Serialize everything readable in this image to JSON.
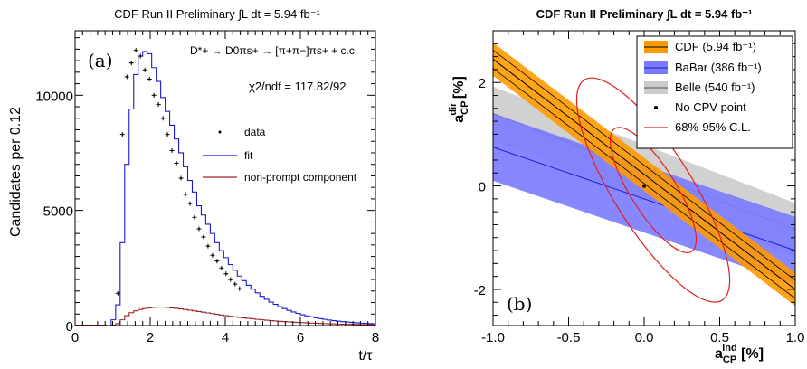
{
  "chart_data": [
    {
      "type": "histogram",
      "title": "CDF Run II Preliminary ∫L dt = 5.94 fb⁻¹",
      "panel_label": "(a)",
      "xlabel": "t/τ",
      "ylabel": "Candidates per 0.12",
      "xlim": [
        0,
        8
      ],
      "ylim": [
        0,
        12800
      ],
      "xticks": [
        "0",
        "2",
        "4",
        "6",
        "8"
      ],
      "yticks": [
        "0",
        "5000",
        "10000"
      ],
      "decay": "D*+ → D0πs+ → [π+π−]πs+ + c.c.",
      "chi2": "χ2/ndf = 117.82/92",
      "legend": [
        {
          "label": "data",
          "color": "#000000"
        },
        {
          "label": "fit",
          "color": "#1a1ad6"
        },
        {
          "label": "non-prompt component",
          "color": "#a02020"
        }
      ],
      "series": [
        {
          "name": "fit",
          "color": "#1a1ad6",
          "x": [
            0.84,
            0.96,
            1.08,
            1.2,
            1.32,
            1.44,
            1.56,
            1.68,
            1.8,
            1.92,
            2.04,
            2.16,
            2.28,
            2.4,
            2.52,
            2.64,
            2.76,
            2.88,
            3.0,
            3.12,
            3.24,
            3.36,
            3.48,
            3.6,
            3.72,
            3.84,
            3.96,
            4.08,
            4.2,
            4.32,
            4.44,
            4.56,
            4.68,
            4.8,
            4.92,
            5.04,
            5.16,
            5.28,
            5.4,
            5.52,
            5.64,
            5.76,
            5.88,
            6.0,
            6.12,
            6.24,
            6.36,
            6.48,
            6.6,
            6.72,
            6.84,
            6.96,
            7.08,
            7.2,
            7.32,
            7.44,
            7.56,
            7.68,
            7.8,
            7.92
          ],
          "values": [
            0,
            250,
            900,
            3600,
            7000,
            9400,
            10900,
            11700,
            11900,
            11800,
            11200,
            10600,
            9900,
            9300,
            8700,
            8100,
            7500,
            6900,
            6300,
            5800,
            5200,
            4800,
            4400,
            4000,
            3600,
            3250,
            2950,
            2650,
            2400,
            2150,
            1950,
            1750,
            1580,
            1420,
            1270,
            1140,
            1020,
            920,
            820,
            740,
            660,
            590,
            530,
            470,
            420,
            380,
            340,
            300,
            270,
            240,
            215,
            190,
            170,
            150,
            135,
            120,
            108,
            96,
            86,
            77
          ]
        },
        {
          "name": "non-prompt component",
          "color": "#a02020",
          "x": [
            0.84,
            0.96,
            1.08,
            1.2,
            1.32,
            1.44,
            1.56,
            1.68,
            1.8,
            1.92,
            2.04,
            2.16,
            2.28,
            2.4,
            2.52,
            2.64,
            2.76,
            2.88,
            3.0,
            3.12,
            3.24,
            3.36,
            3.48,
            3.6,
            3.72,
            3.84,
            3.96,
            4.08,
            4.2,
            4.32,
            4.44,
            4.56,
            4.68,
            4.8,
            4.92,
            5.04,
            5.16,
            5.28,
            5.4,
            5.52,
            5.64,
            5.76,
            5.88,
            6.0,
            6.12,
            6.24,
            6.36,
            6.48,
            6.6,
            6.72,
            6.84,
            6.96,
            7.08,
            7.2,
            7.32,
            7.44,
            7.56,
            7.68,
            7.8,
            7.92
          ],
          "values": [
            0,
            20,
            80,
            250,
            430,
            560,
            640,
            700,
            740,
            770,
            790,
            800,
            800,
            790,
            770,
            750,
            725,
            700,
            670,
            640,
            610,
            580,
            550,
            520,
            490,
            460,
            430,
            405,
            380,
            355,
            330,
            310,
            290,
            270,
            250,
            232,
            215,
            200,
            185,
            171,
            158,
            146,
            135,
            125,
            115,
            106,
            98,
            90,
            83,
            76,
            70,
            64,
            59,
            54,
            50,
            46,
            42,
            39,
            36,
            33
          ]
        },
        {
          "name": "data",
          "color": "#000000",
          "x": [
            1.14,
            1.26,
            1.38,
            1.5,
            1.62,
            1.74,
            1.86,
            1.98,
            2.1,
            2.22,
            2.34,
            2.46,
            2.58,
            2.7,
            2.82,
            2.94,
            3.06,
            3.18,
            3.3,
            3.42,
            3.54,
            3.66,
            3.78,
            3.9,
            4.02,
            4.14,
            4.26,
            4.38
          ],
          "values": [
            1400,
            8300,
            10800,
            11400,
            11950,
            11700,
            11100,
            10700,
            10000,
            9600,
            9000,
            8300,
            7600,
            7050,
            6400,
            5700,
            5300,
            4700,
            4200,
            3850,
            3450,
            3050,
            2800,
            2500,
            2250,
            2000,
            1800,
            1600
          ]
        }
      ]
    },
    {
      "type": "band",
      "title": "CDF Run II Preliminary ∫L dt = 5.94 fb⁻¹",
      "panel_label": "(b)",
      "xlabel": "a_CP^ind [%]",
      "ylabel": "a_CP^dir [%]",
      "xlim": [
        -1.0,
        1.0
      ],
      "ylim": [
        -2.7,
        3.0
      ],
      "xticks": [
        "-1.0",
        "-0.5",
        "0.0",
        "0.5",
        "1.0"
      ],
      "yticks": [
        "-2",
        "0",
        "2"
      ],
      "legend": [
        {
          "label": "CDF (5.94 fb⁻¹)",
          "color": "#ff9900"
        },
        {
          "label": "BaBar (386 fb⁻¹)",
          "color": "#7a7aff"
        },
        {
          "label": "Belle (540 fb⁻¹)",
          "color": "#cccccc"
        },
        {
          "label": "No CPV point",
          "color": "#000000"
        },
        {
          "label": "68%-95% C.L.",
          "color": "#e02020"
        }
      ],
      "bands": [
        {
          "name": "Belle",
          "color": "#cccccc",
          "line_color": "#555555",
          "center_at_xmin": 1.4,
          "center_at_xmax": -0.85,
          "halfwidth": 0.52
        },
        {
          "name": "BaBar",
          "color": "#7a7aff",
          "line_color": "#1a1ad6",
          "center_at_xmin": 0.75,
          "center_at_xmax": -1.25,
          "halfwidth": 0.65
        },
        {
          "name": "CDF",
          "color": "#ff9900",
          "line_color": "#000000",
          "center_at_xmin": 2.45,
          "center_at_xmax": -2.0,
          "halfwidth": 0.32
        }
      ],
      "no_cpv_point": {
        "x": 0.0,
        "y": 0.0
      },
      "contours": [
        {
          "level": "68%",
          "color": "#e02020",
          "cx": 0.06,
          "cy": -0.08,
          "rx": 0.48,
          "ry": 0.15,
          "angle_deg": 58
        },
        {
          "level": "95%",
          "color": "#e02020",
          "cx": 0.06,
          "cy": -0.08,
          "rx": 0.86,
          "ry": 0.26,
          "angle_deg": 58
        }
      ]
    }
  ]
}
